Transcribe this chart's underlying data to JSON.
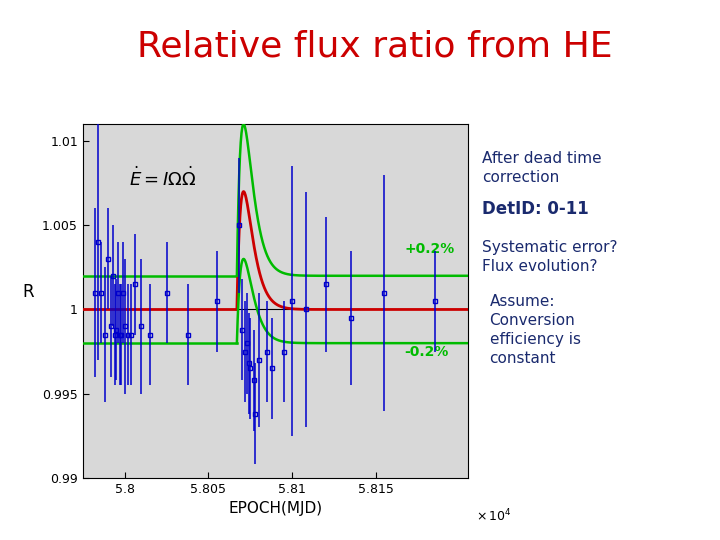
{
  "title": "Relative flux ratio from HE",
  "title_color": "#cc0000",
  "title_fontsize": 26,
  "xlabel": "EPOCH(MJD)",
  "ylabel": "R",
  "xlim": [
    57975,
    58205
  ],
  "ylim": [
    0.99,
    1.011
  ],
  "xticks": [
    58000,
    58050,
    58100,
    58150
  ],
  "xtick_labels": [
    "5.8",
    "5.805",
    "5.81",
    "5.815"
  ],
  "yticks": [
    0.99,
    0.995,
    1.0,
    1.005,
    1.01
  ],
  "ytick_labels": [
    "0.99",
    "0.995",
    "1",
    "1.005",
    "1.01"
  ],
  "plot_bg": "#d8d8d8",
  "glitch_epoch": 58067,
  "stripe_color_top": "#00bbee",
  "stripe_color_left": "#f5a623",
  "stripe_color_bottom": "#f5a623",
  "right_text_color": "#1a2a6e",
  "green_color": "#00bb00",
  "red_color": "#cc0000",
  "blue_color": "#0000cc",
  "x_data": [
    57982,
    57984,
    57986,
    57988,
    57990,
    57992,
    57993,
    57994,
    57995,
    57996,
    57997,
    57998,
    57999,
    58000,
    58002,
    58004,
    58006,
    58010,
    58015,
    58025,
    58038,
    58055,
    58068,
    58070,
    58072,
    58073,
    58074,
    58075,
    58077,
    58078,
    58080,
    58085,
    58088,
    58095,
    58100,
    58108,
    58120,
    58135,
    58155,
    58185
  ],
  "y_data": [
    1.001,
    1.004,
    1.001,
    0.9985,
    1.003,
    0.999,
    1.002,
    0.9985,
    0.9988,
    1.001,
    0.9985,
    0.9985,
    1.001,
    0.999,
    0.9985,
    0.9985,
    1.0015,
    0.999,
    0.9985,
    1.001,
    0.9985,
    1.0005,
    1.005,
    0.9988,
    0.9975,
    0.998,
    0.9968,
    0.9965,
    0.9958,
    0.9938,
    0.997,
    0.9975,
    0.9965,
    0.9975,
    1.0005,
    1.0,
    1.0015,
    0.9995,
    1.001,
    1.0005
  ],
  "y_err": [
    0.005,
    0.007,
    0.003,
    0.004,
    0.003,
    0.003,
    0.003,
    0.003,
    0.003,
    0.003,
    0.003,
    0.003,
    0.003,
    0.004,
    0.003,
    0.003,
    0.003,
    0.004,
    0.003,
    0.003,
    0.003,
    0.003,
    0.004,
    0.003,
    0.003,
    0.003,
    0.003,
    0.003,
    0.003,
    0.003,
    0.004,
    0.003,
    0.003,
    0.003,
    0.008,
    0.007,
    0.004,
    0.004,
    0.007,
    0.003
  ]
}
